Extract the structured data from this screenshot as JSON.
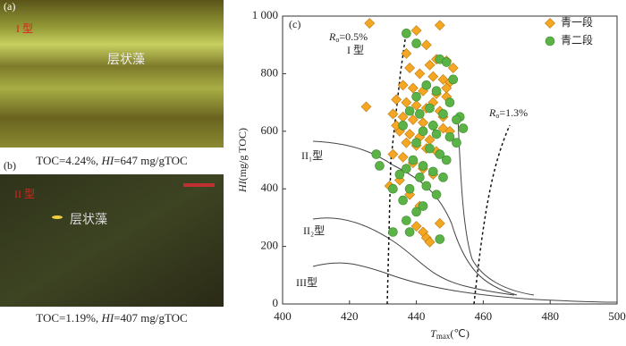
{
  "panels": [
    {
      "label": "(a)",
      "tag": "I 型",
      "annotation": "层状藻",
      "caption": [
        "TOC=4.24%, ",
        "HI",
        "=647 mg/gTOC"
      ]
    },
    {
      "label": "(b)",
      "tag": "II 型",
      "annotation": "层状藻",
      "caption": [
        "TOC=1.19%, ",
        "HI",
        "=407 mg/gTOC"
      ]
    }
  ],
  "chart_data": {
    "type": "scatter",
    "label": "(c)",
    "x_label": [
      "T",
      "max",
      "(℃)"
    ],
    "y_label": [
      "HI",
      "(mg/g TOC)"
    ],
    "xlim": [
      400,
      500
    ],
    "ylim": [
      0,
      1000
    ],
    "xticks": [
      400,
      420,
      440,
      460,
      480,
      500
    ],
    "yticks": [
      0,
      200,
      400,
      600,
      800,
      {
        "value": 1000,
        "label": "1 000"
      }
    ],
    "annotations": [
      [
        "R",
        "o",
        "=0.5%"
      ],
      [
        "R",
        "o",
        "=1.3%"
      ],
      [
        "I 型"
      ],
      [
        "II₁型"
      ],
      [
        "II₂型"
      ],
      [
        "III型"
      ]
    ],
    "legend": "upper right",
    "series": [
      {
        "name": "青一段",
        "color": "#f5a623",
        "marker": "diamond",
        "x": [
          426,
          447,
          440,
          443,
          446,
          449,
          444,
          438,
          441,
          445,
          448,
          450,
          436,
          439,
          442,
          446,
          449,
          434,
          437,
          440,
          443,
          447,
          425,
          433,
          436,
          439,
          442,
          445,
          448,
          435,
          438,
          441,
          444,
          437,
          440,
          443,
          446,
          433,
          436,
          439,
          442,
          445,
          435,
          432,
          438,
          441,
          447,
          442,
          443,
          444,
          440,
          450,
          449,
          451,
          437,
          445,
          434,
          448
        ],
        "values": [
          975,
          968,
          950,
          900,
          850,
          845,
          830,
          820,
          800,
          790,
          780,
          770,
          760,
          750,
          740,
          730,
          720,
          710,
          700,
          690,
          680,
          670,
          685,
          660,
          650,
          640,
          630,
          620,
          610,
          600,
          590,
          580,
          570,
          560,
          550,
          540,
          530,
          520,
          510,
          490,
          470,
          450,
          430,
          410,
          380,
          340,
          280,
          250,
          230,
          215,
          270,
          600,
          750,
          820,
          870,
          700,
          620,
          650
        ]
      },
      {
        "name": "青二段",
        "color": "#5bb247",
        "marker": "circle",
        "x": [
          437,
          440,
          447,
          449,
          451,
          443,
          446,
          450,
          440,
          453,
          444,
          448,
          438,
          436,
          442,
          446,
          450,
          452,
          440,
          444,
          447,
          449,
          439,
          442,
          445,
          448,
          437,
          441,
          435,
          433,
          438,
          443,
          446,
          436,
          440,
          442,
          428,
          429,
          437,
          438,
          433,
          447,
          452,
          454,
          441,
          445
        ],
        "values": [
          940,
          905,
          850,
          840,
          780,
          760,
          740,
          700,
          720,
          650,
          680,
          660,
          670,
          620,
          600,
          590,
          580,
          560,
          560,
          540,
          520,
          500,
          500,
          480,
          460,
          440,
          470,
          440,
          450,
          400,
          400,
          410,
          380,
          360,
          320,
          340,
          520,
          480,
          290,
          250,
          250,
          225,
          640,
          610,
          660,
          620
        ]
      }
    ]
  }
}
